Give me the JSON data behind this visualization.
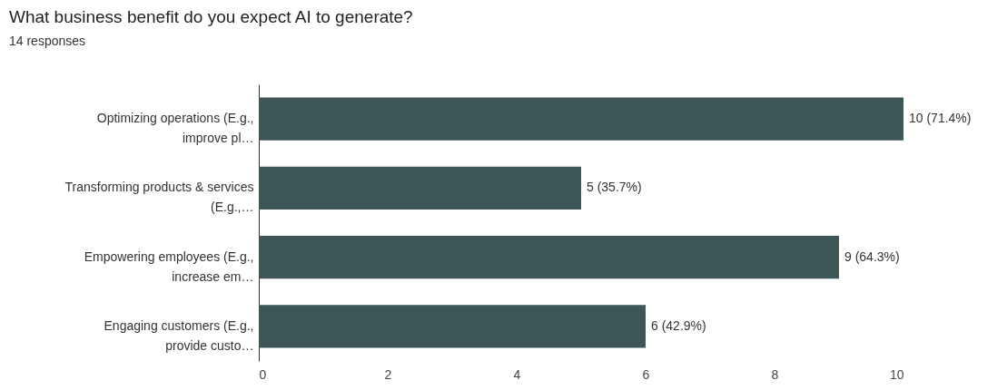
{
  "chart_data": {
    "type": "bar",
    "orientation": "horizontal",
    "title": "What business benefit do you expect AI to generate?",
    "subtitle": "14 responses",
    "categories": [
      "Optimizing operations (E.g.,\nimprove pl…",
      "Transforming products & services\n(E.g.,…",
      "Empowering employees (E.g.,\nincrease em…",
      "Engaging customers (E.g.,\nprovide custo…"
    ],
    "values": [
      10,
      5,
      9,
      6
    ],
    "value_labels": [
      "10 (71.4%)",
      "5 (35.7%)",
      "9 (64.3%)",
      "6 (42.9%)"
    ],
    "color": "#3d5656",
    "xlim": [
      0,
      10
    ],
    "xticks": [
      0,
      2,
      4,
      6,
      8,
      10
    ],
    "grid": false
  }
}
